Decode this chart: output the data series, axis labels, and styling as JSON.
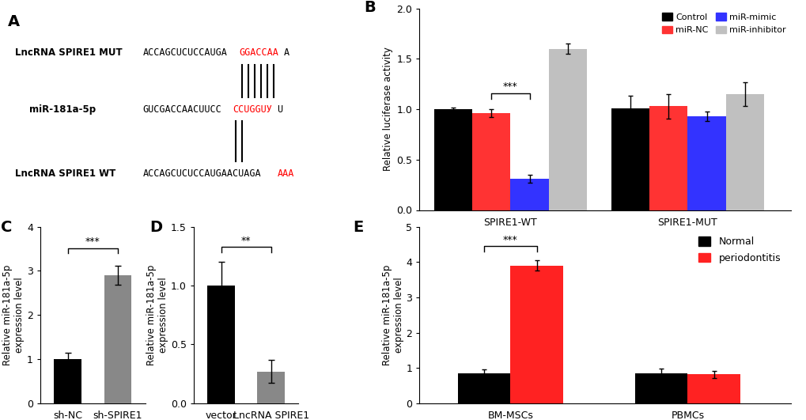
{
  "panel_B": {
    "groups": [
      "SPIRE1-WT",
      "SPIRE1-MUT"
    ],
    "conditions": [
      "Control",
      "miR-NC",
      "miR-mimic",
      "miR-inhibitor"
    ],
    "colors": [
      "#000000",
      "#FF3333",
      "#3333FF",
      "#C0C0C0"
    ],
    "values": [
      [
        1.0,
        0.96,
        0.31,
        1.6
      ],
      [
        1.01,
        1.03,
        0.93,
        1.15
      ]
    ],
    "errors": [
      [
        0.02,
        0.04,
        0.04,
        0.05
      ],
      [
        0.12,
        0.12,
        0.05,
        0.12
      ]
    ],
    "ylabel": "Relative luciferase activity",
    "ylim": [
      0.0,
      2.0
    ],
    "yticks": [
      0.0,
      0.5,
      1.0,
      1.5,
      2.0
    ]
  },
  "panel_C": {
    "categories": [
      "sh-NC",
      "sh-SPIRE1"
    ],
    "values": [
      1.0,
      2.9
    ],
    "errors": [
      0.15,
      0.22
    ],
    "colors": [
      "#000000",
      "#888888"
    ],
    "ylabel": "Relative miR-181a-5p\nexpression level",
    "ylim": [
      0,
      4
    ],
    "yticks": [
      0,
      1,
      2,
      3,
      4
    ]
  },
  "panel_D": {
    "categories": [
      "vector",
      "LncRNA SPIRE1"
    ],
    "values": [
      1.0,
      0.27
    ],
    "errors": [
      0.2,
      0.1
    ],
    "colors": [
      "#000000",
      "#888888"
    ],
    "ylabel": "Relative miR-181a-5p\nexpression level",
    "ylim": [
      0.0,
      1.5
    ],
    "yticks": [
      0.0,
      0.5,
      1.0,
      1.5
    ]
  },
  "panel_E": {
    "groups": [
      "BM-MSCs",
      "PBMCs"
    ],
    "conditions": [
      "Normal",
      "periodontitis"
    ],
    "colors": [
      "#000000",
      "#FF2222"
    ],
    "values": [
      [
        0.85,
        3.9
      ],
      [
        0.85,
        0.82
      ]
    ],
    "errors": [
      [
        0.1,
        0.15
      ],
      [
        0.12,
        0.1
      ]
    ],
    "ylabel": "Relative miR-181a-5p\nexpression level",
    "ylim": [
      0,
      5
    ],
    "yticks": [
      0,
      1,
      2,
      3,
      4,
      5
    ]
  },
  "panel_A": {
    "mut_label": "LncRNA SPIRE1 MUT",
    "mut_black": "ACCAGCUCUCCAUGA",
    "mut_red": "GGACCAA",
    "mut_end": "A",
    "mir_label": "miR-181a-5p",
    "mir_black": "GUCGACCAACUUCC",
    "mir_red": "CCUGGUУ",
    "mir_end": "U",
    "wt_label": "LncRNA SPIRE1 WT",
    "wt_black": "ACCAGCUCUCCAUGAACUAGA",
    "wt_red": "AAA",
    "n_bars_mut": 6,
    "n_bars_wt": 2
  }
}
